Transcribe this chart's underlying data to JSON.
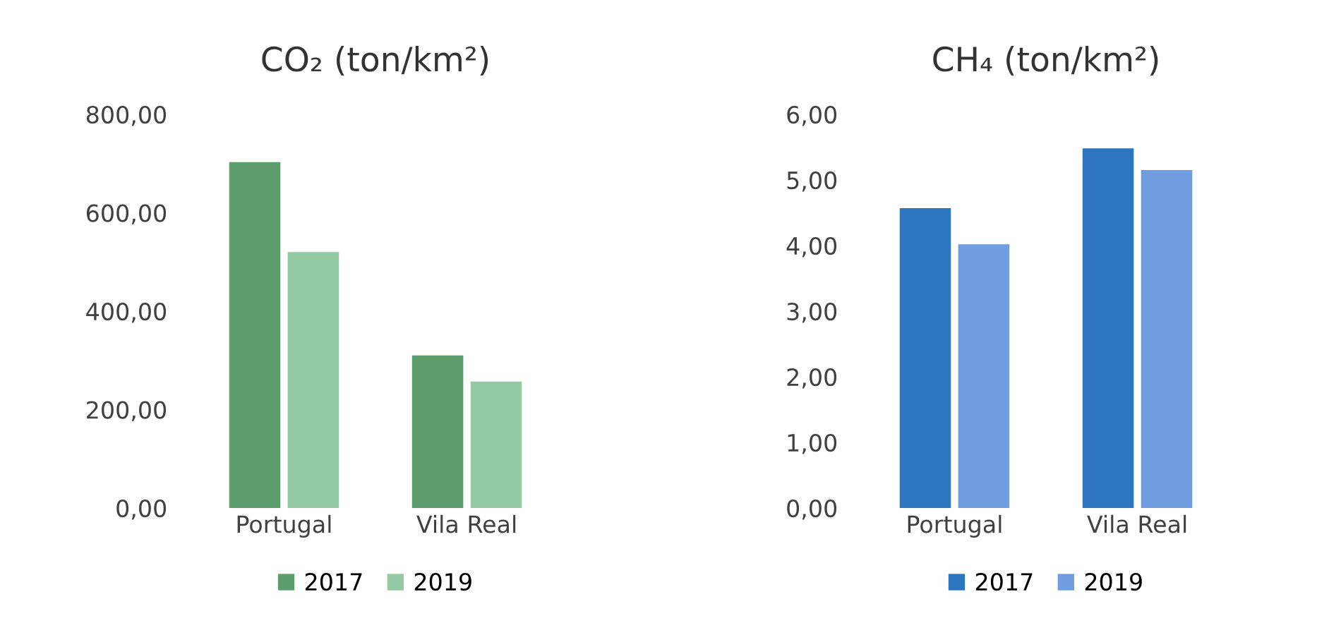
{
  "chart_data": [
    {
      "type": "bar",
      "title": "CO₂ (ton/km²)",
      "categories": [
        "Portugal",
        "Vila Real"
      ],
      "series": [
        {
          "name": "2017",
          "color": "#5e9e6e",
          "values": [
            703,
            310
          ]
        },
        {
          "name": "2019",
          "color": "#93c9a3",
          "values": [
            520,
            257
          ]
        }
      ],
      "ylim": [
        0,
        800
      ],
      "yticks": [
        {
          "value": 0,
          "label": "0,00"
        },
        {
          "value": 200,
          "label": "200,00"
        },
        {
          "value": 400,
          "label": "400,00"
        },
        {
          "value": 600,
          "label": "600,00"
        },
        {
          "value": 800,
          "label": "800,00"
        }
      ],
      "legend": "bottom"
    },
    {
      "type": "bar",
      "title": "CH₄ (ton/km²)",
      "categories": [
        "Portugal",
        "Vila Real"
      ],
      "series": [
        {
          "name": "2017",
          "color": "#2e75c0",
          "values": [
            4.57,
            5.48
          ]
        },
        {
          "name": "2019",
          "color": "#6f9de0",
          "values": [
            4.02,
            5.15
          ]
        }
      ],
      "ylim": [
        0,
        6
      ],
      "yticks": [
        {
          "value": 0,
          "label": "0,00"
        },
        {
          "value": 1,
          "label": "1,00"
        },
        {
          "value": 2,
          "label": "2,00"
        },
        {
          "value": 3,
          "label": "3,00"
        },
        {
          "value": 4,
          "label": "4,00"
        },
        {
          "value": 5,
          "label": "5,00"
        },
        {
          "value": 6,
          "label": "6,00"
        }
      ],
      "legend": "bottom"
    }
  ]
}
